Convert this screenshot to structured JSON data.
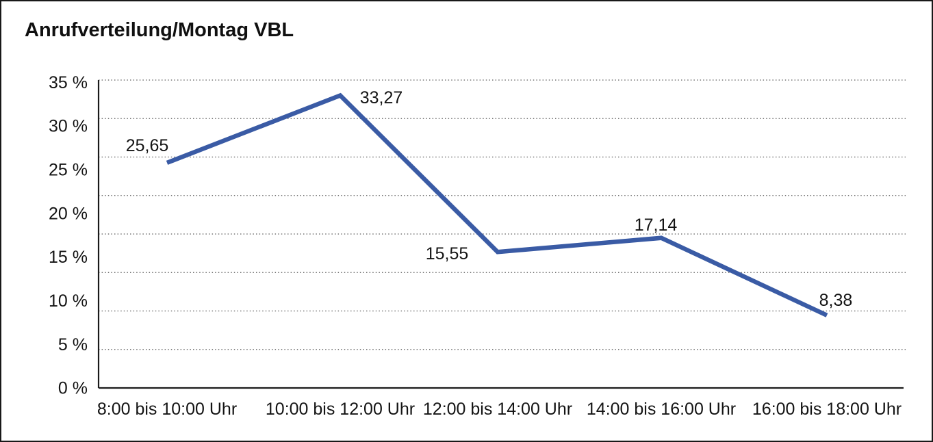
{
  "title": "Anrufverteilung/Montag VBL",
  "chart_data": {
    "type": "line",
    "title": "Anrufverteilung/Montag VBL",
    "categories": [
      "8:00 bis 10:00 Uhr",
      "10:00 bis 12:00 Uhr",
      "12:00 bis 14:00 Uhr",
      "14:00 bis 16:00 Uhr",
      "16:00 bis 18:00 Uhr"
    ],
    "values": [
      25.65,
      33.27,
      15.55,
      17.14,
      8.38
    ],
    "value_labels": [
      "25,65",
      "33,27",
      "15,55",
      "17,14",
      "8,38"
    ],
    "yticks": [
      "35 %",
      "30 %",
      "25 %",
      "20 %",
      "15 %",
      "10 %",
      "5 %",
      "0 %"
    ],
    "ytick_values": [
      35,
      30,
      25,
      20,
      15,
      10,
      5,
      0
    ],
    "ylim": [
      0,
      35
    ],
    "xlabel": "",
    "ylabel": "",
    "legend": "none",
    "grid": "horizontal-dotted",
    "line_color": "#3A5BA5",
    "axis_color": "#1A1A1A",
    "gridline_color": "#5A5A5A",
    "text_color": "#141414",
    "background_color": "#FFFFFF"
  }
}
